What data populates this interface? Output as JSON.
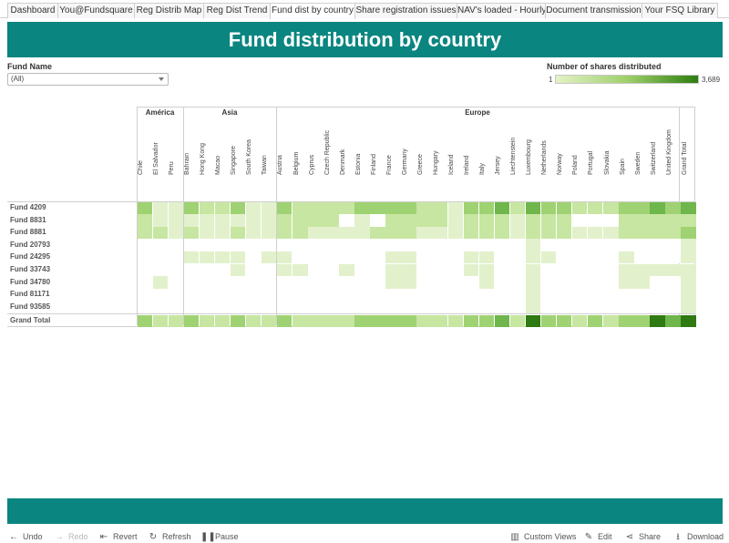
{
  "tabs": [
    "Dashboard",
    "You@Fundsquare",
    "Reg Distrib Map",
    "Reg Dist Trend",
    "Fund dist by country",
    "Share registration issues",
    "NAV's loaded - Hourly",
    "Document transmission",
    "Your FSQ Library"
  ],
  "active_tab": "Fund dist by country",
  "header": {
    "title": "Fund distribution by country"
  },
  "filter": {
    "label": "Fund Name",
    "value": "(All)"
  },
  "legend": {
    "title": "Number of shares distributed",
    "min": "1",
    "max": "3,689"
  },
  "regions": [
    "América",
    "Asia",
    "Europe"
  ],
  "columns": [
    "Chile",
    "El Salvador",
    "Peru",
    "Bahrain",
    "Hong Kong",
    "Macao",
    "Singapore",
    "South Korea",
    "Taiwan",
    "Austria",
    "Belgium",
    "Cyprus",
    "Czech Republic",
    "Denmark",
    "Estonia",
    "Finland",
    "France",
    "Germany",
    "Greece",
    "Hungary",
    "Iceland",
    "Ireland",
    "Italy",
    "Jersey",
    "Liechtenstein",
    "Luxembourg",
    "Netherlands",
    "Norway",
    "Poland",
    "Portugal",
    "Slovakia",
    "Spain",
    "Sweden",
    "Switzerland",
    "United Kingdom",
    "Grand Total"
  ],
  "rows": [
    "Fund 4209",
    "Fund 8831",
    "Fund 8881",
    "Fund 20793",
    "Fund 24295",
    "Fund 33743",
    "Fund 34780",
    "Fund 81171",
    "Fund 93585",
    "Grand Total"
  ],
  "matrix": [
    [
      3,
      1,
      1,
      3,
      2,
      2,
      3,
      1,
      1,
      3,
      2,
      2,
      2,
      2,
      3,
      3,
      3,
      3,
      2,
      2,
      1,
      3,
      3,
      4,
      2,
      4,
      3,
      3,
      2,
      2,
      2,
      3,
      3,
      4,
      3,
      4
    ],
    [
      2,
      1,
      1,
      1,
      1,
      1,
      1,
      1,
      1,
      2,
      2,
      2,
      2,
      0,
      1,
      0,
      2,
      2,
      2,
      2,
      1,
      2,
      2,
      2,
      1,
      2,
      2,
      2,
      0,
      0,
      0,
      2,
      2,
      2,
      2,
      2
    ],
    [
      2,
      2,
      1,
      2,
      1,
      1,
      2,
      1,
      1,
      2,
      2,
      1,
      1,
      1,
      1,
      2,
      2,
      2,
      1,
      1,
      1,
      2,
      2,
      2,
      1,
      2,
      2,
      2,
      1,
      1,
      1,
      2,
      2,
      2,
      2,
      3
    ],
    [
      0,
      0,
      0,
      0,
      0,
      0,
      0,
      0,
      0,
      0,
      0,
      0,
      0,
      0,
      0,
      0,
      0,
      0,
      0,
      0,
      0,
      0,
      0,
      0,
      0,
      1,
      0,
      0,
      0,
      0,
      0,
      0,
      0,
      0,
      0,
      1
    ],
    [
      0,
      0,
      0,
      1,
      1,
      1,
      1,
      0,
      1,
      1,
      0,
      0,
      0,
      0,
      0,
      0,
      1,
      1,
      0,
      0,
      0,
      1,
      1,
      0,
      0,
      1,
      1,
      0,
      0,
      0,
      0,
      1,
      0,
      0,
      0,
      1
    ],
    [
      0,
      0,
      0,
      0,
      0,
      0,
      1,
      0,
      0,
      1,
      1,
      0,
      0,
      1,
      0,
      0,
      1,
      1,
      0,
      0,
      0,
      1,
      1,
      0,
      0,
      1,
      0,
      0,
      0,
      0,
      0,
      1,
      1,
      1,
      1,
      1
    ],
    [
      0,
      1,
      0,
      0,
      0,
      0,
      0,
      0,
      0,
      0,
      0,
      0,
      0,
      0,
      0,
      0,
      1,
      1,
      0,
      0,
      0,
      0,
      1,
      0,
      0,
      1,
      0,
      0,
      0,
      0,
      0,
      1,
      1,
      0,
      0,
      1
    ],
    [
      0,
      0,
      0,
      0,
      0,
      0,
      0,
      0,
      0,
      0,
      0,
      0,
      0,
      0,
      0,
      0,
      0,
      0,
      0,
      0,
      0,
      0,
      0,
      0,
      0,
      1,
      0,
      0,
      0,
      0,
      0,
      0,
      0,
      0,
      0,
      1
    ],
    [
      0,
      0,
      0,
      0,
      0,
      0,
      0,
      0,
      0,
      0,
      0,
      0,
      0,
      0,
      0,
      0,
      0,
      0,
      0,
      0,
      0,
      0,
      0,
      0,
      0,
      1,
      0,
      0,
      0,
      0,
      0,
      0,
      0,
      0,
      0,
      1
    ],
    [
      3,
      2,
      2,
      3,
      2,
      2,
      3,
      2,
      2,
      3,
      2,
      2,
      2,
      2,
      3,
      3,
      3,
      3,
      2,
      2,
      2,
      3,
      3,
      4,
      2,
      5,
      3,
      3,
      2,
      3,
      2,
      3,
      3,
      5,
      4,
      5
    ]
  ],
  "shade_colors": [
    "#ffffff",
    "#e2f1cc",
    "#c7e6a1",
    "#9fd272",
    "#6fb64c",
    "#2f7a12"
  ],
  "toolbar": {
    "undo": "Undo",
    "redo": "Redo",
    "revert": "Revert",
    "refresh": "Refresh",
    "pause": "Pause",
    "custom_views": "Custom Views",
    "edit": "Edit",
    "share": "Share",
    "download": "Download"
  }
}
